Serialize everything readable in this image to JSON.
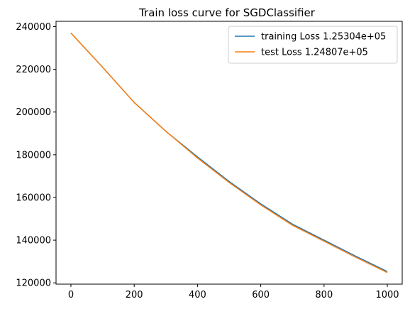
{
  "chart_data": {
    "type": "line",
    "title": "Train loss curve for SGDClassifier",
    "xlabel": "",
    "ylabel": "",
    "xlim": [
      -47,
      1047
    ],
    "ylim": [
      119400,
      242500
    ],
    "x_ticks": [
      0,
      200,
      400,
      600,
      800,
      1000
    ],
    "x_tick_labels": [
      "0",
      "200",
      "400",
      "600",
      "800",
      "1000"
    ],
    "y_ticks": [
      120000,
      140000,
      160000,
      180000,
      200000,
      220000,
      240000
    ],
    "y_tick_labels": [
      "120000",
      "140000",
      "160000",
      "180000",
      "200000",
      "220000",
      "240000"
    ],
    "grid": false,
    "legend_position": "top-right",
    "x": [
      0,
      100,
      200,
      300,
      400,
      500,
      600,
      700,
      800,
      900,
      1000
    ],
    "series": [
      {
        "name": "training Loss 1.25304e+05",
        "color": "#1f77b4",
        "values": [
          237000,
          221000,
          204500,
          191000,
          179000,
          167500,
          157000,
          147500,
          140000,
          132500,
          125304
        ]
      },
      {
        "name": "test Loss 1.24807e+05",
        "color": "#ff7f0e",
        "values": [
          237000,
          221000,
          204500,
          191000,
          178500,
          167000,
          156500,
          147000,
          139500,
          132000,
          124807
        ]
      }
    ]
  }
}
